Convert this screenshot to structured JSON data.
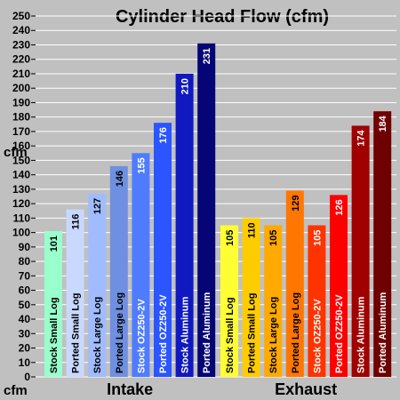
{
  "chart_data": {
    "type": "bar",
    "title": "Cylinder Head Flow (cfm)",
    "y_unit_top": "cfm",
    "y_unit_bottom": "cfm",
    "ylim": [
      0,
      250
    ],
    "yticks": [
      0,
      10,
      20,
      30,
      40,
      50,
      60,
      70,
      80,
      90,
      100,
      110,
      120,
      130,
      140,
      150,
      160,
      170,
      180,
      190,
      200,
      210,
      220,
      230,
      240,
      250
    ],
    "grid": true,
    "groups": [
      {
        "name": "Intake",
        "bars": [
          {
            "label": "Stock Small Log",
            "value": 101,
            "color": "#99ffcc",
            "text_color": "#000000"
          },
          {
            "label": "Ported Small Log",
            "value": 116,
            "color": "#c8d8ff",
            "text_color": "#000000"
          },
          {
            "label": "Stock Large Log",
            "value": 127,
            "color": "#a0bcff",
            "text_color": "#000000"
          },
          {
            "label": "Ported Large Log",
            "value": 146,
            "color": "#6f8fe0",
            "text_color": "#000000"
          },
          {
            "label": "Stock OZ250-2V",
            "value": 155,
            "color": "#4f7cff",
            "text_color": "#ffffff"
          },
          {
            "label": "Ported OZ250-2V",
            "value": 176,
            "color": "#2a55ff",
            "text_color": "#ffffff"
          },
          {
            "label": "Stock Aluminum",
            "value": 210,
            "color": "#1018c0",
            "text_color": "#ffffff"
          },
          {
            "label": "Ported Aluminum",
            "value": 231,
            "color": "#050575",
            "text_color": "#ffffff"
          }
        ]
      },
      {
        "name": "Exhaust",
        "bars": [
          {
            "label": "Stock Small Log",
            "value": 105,
            "color": "#ffff33",
            "text_color": "#000000"
          },
          {
            "label": "Ported Small Log",
            "value": 110,
            "color": "#ffcc00",
            "text_color": "#000000"
          },
          {
            "label": "Stock Large Log",
            "value": 105,
            "color": "#ffaa00",
            "text_color": "#000000"
          },
          {
            "label": "Ported Large Log",
            "value": 129,
            "color": "#ff7700",
            "text_color": "#000000"
          },
          {
            "label": "Stock OZ250-2V",
            "value": 105,
            "color": "#ff3300",
            "text_color": "#ffffff"
          },
          {
            "label": "Ported OZ250-2V",
            "value": 126,
            "color": "#ff0000",
            "text_color": "#ffffff"
          },
          {
            "label": "Stock Aluminum",
            "value": 174,
            "color": "#a00000",
            "text_color": "#ffffff"
          },
          {
            "label": "Ported Aluminum",
            "value": 184,
            "color": "#6e0000",
            "text_color": "#ffffff"
          }
        ]
      }
    ]
  }
}
